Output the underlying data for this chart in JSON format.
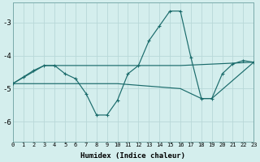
{
  "xlabel": "Humidex (Indice chaleur)",
  "bg_color": "#d4eeed",
  "grid_color": "#b8d8d8",
  "line_color": "#1a6b6b",
  "x_min": 0,
  "x_max": 23,
  "y_min": -6.6,
  "y_max": -2.4,
  "yticks": [
    -6,
    -5,
    -4,
    -3
  ],
  "series1": [
    [
      0,
      -4.85
    ],
    [
      1,
      -4.65
    ],
    [
      2,
      -4.45
    ],
    [
      3,
      -4.3
    ],
    [
      4,
      -4.3
    ],
    [
      5,
      -4.55
    ],
    [
      6,
      -4.7
    ],
    [
      7,
      -5.15
    ],
    [
      8,
      -5.8
    ],
    [
      9,
      -5.8
    ],
    [
      10,
      -5.35
    ],
    [
      11,
      -4.55
    ],
    [
      12,
      -4.3
    ],
    [
      13,
      -3.55
    ],
    [
      14,
      -3.1
    ],
    [
      15,
      -2.65
    ],
    [
      16,
      -2.65
    ],
    [
      17,
      -4.05
    ],
    [
      18,
      -5.3
    ],
    [
      19,
      -5.3
    ],
    [
      20,
      -4.55
    ],
    [
      21,
      -4.25
    ],
    [
      22,
      -4.15
    ],
    [
      23,
      -4.2
    ]
  ],
  "series2": [
    [
      0,
      -4.85
    ],
    [
      3,
      -4.3
    ],
    [
      10,
      -4.3
    ],
    [
      16,
      -4.3
    ],
    [
      23,
      -4.2
    ]
  ],
  "series3": [
    [
      0,
      -4.85
    ],
    [
      4,
      -4.85
    ],
    [
      10,
      -4.85
    ],
    [
      16,
      -5.0
    ],
    [
      18,
      -5.3
    ],
    [
      19,
      -5.3
    ],
    [
      23,
      -4.2
    ]
  ]
}
